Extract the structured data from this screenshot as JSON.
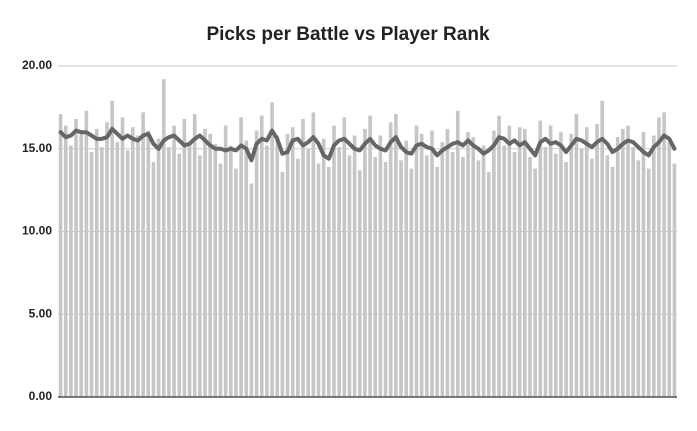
{
  "chart_data": {
    "type": "bar",
    "title": "Picks per Battle vs Player Rank",
    "ylim": [
      0,
      20
    ],
    "yticks": [
      {
        "value": 0,
        "label": "0.00"
      },
      {
        "value": 5,
        "label": "5.00"
      },
      {
        "value": 10,
        "label": "10.00"
      },
      {
        "value": 15,
        "label": "15.00"
      },
      {
        "value": 20,
        "label": "20.00"
      }
    ],
    "grid": true,
    "series": [
      {
        "type": "bar",
        "color": "#c6c6c6",
        "values": [
          17.1,
          16.4,
          15.2,
          16.8,
          15.9,
          17.3,
          14.8,
          16.2,
          15.1,
          16.6,
          17.9,
          15.4,
          16.9,
          14.9,
          16.3,
          15.8,
          17.2,
          16.1,
          14.2,
          15.6,
          19.2,
          15.1,
          16.4,
          14.7,
          16.8,
          15.3,
          17.1,
          14.6,
          16.2,
          15.9,
          15.3,
          14.1,
          16.4,
          15.2,
          13.8,
          16.9,
          15.5,
          12.9,
          16.1,
          17.0,
          15.2,
          17.8,
          15.8,
          13.6,
          15.9,
          16.3,
          14.4,
          16.8,
          15.0,
          17.2,
          14.1,
          15.6,
          13.9,
          16.4,
          15.1,
          16.9,
          14.6,
          15.8,
          13.7,
          16.2,
          17.0,
          14.5,
          15.8,
          14.2,
          16.6,
          17.1,
          14.3,
          15.5,
          13.8,
          16.4,
          15.9,
          14.6,
          16.1,
          13.9,
          15.4,
          16.2,
          14.8,
          17.3,
          14.5,
          16.0,
          15.7,
          14.3,
          15.2,
          13.6,
          16.1,
          17.0,
          15.2,
          16.4,
          14.8,
          16.3,
          16.2,
          14.5,
          13.8,
          16.7,
          15.1,
          16.4,
          14.7,
          16.0,
          14.2,
          15.9,
          17.1,
          15.0,
          16.3,
          14.4,
          16.5,
          17.9,
          14.6,
          13.9,
          15.7,
          16.2,
          16.4,
          15.1,
          14.3,
          16.0,
          13.8,
          15.8,
          16.9,
          17.2,
          15.4,
          14.1
        ]
      },
      {
        "type": "line",
        "color": "#666666",
        "values": [
          16.0,
          15.7,
          15.8,
          16.1,
          16.0,
          16.0,
          15.8,
          15.6,
          15.6,
          15.7,
          16.2,
          15.9,
          15.6,
          15.8,
          15.6,
          15.5,
          15.8,
          15.9,
          15.3,
          15.0,
          15.5,
          15.7,
          15.8,
          15.5,
          15.2,
          15.3,
          15.6,
          15.8,
          15.5,
          15.2,
          15.0,
          15.0,
          14.9,
          15.0,
          14.9,
          15.2,
          15.0,
          14.3,
          15.3,
          15.6,
          15.5,
          16.1,
          15.6,
          14.7,
          14.8,
          15.5,
          15.6,
          15.2,
          15.4,
          15.7,
          15.3,
          14.6,
          14.4,
          15.2,
          15.5,
          15.6,
          15.3,
          15.0,
          14.9,
          15.3,
          15.6,
          15.2,
          15.0,
          14.9,
          15.4,
          15.7,
          15.1,
          14.8,
          14.7,
          15.2,
          15.3,
          15.1,
          15.0,
          14.6,
          14.9,
          15.1,
          15.3,
          15.4,
          15.2,
          15.5,
          15.2,
          15.0,
          14.7,
          14.9,
          15.2,
          15.7,
          15.6,
          15.3,
          15.5,
          15.2,
          15.4,
          15.0,
          14.6,
          15.4,
          15.6,
          15.3,
          15.4,
          15.2,
          14.8,
          15.2,
          15.6,
          15.5,
          15.3,
          15.1,
          15.4,
          15.6,
          15.3,
          14.8,
          15.0,
          15.3,
          15.5,
          15.4,
          15.1,
          14.8,
          14.6,
          15.1,
          15.4,
          15.8,
          15.6,
          15.0
        ]
      }
    ]
  }
}
